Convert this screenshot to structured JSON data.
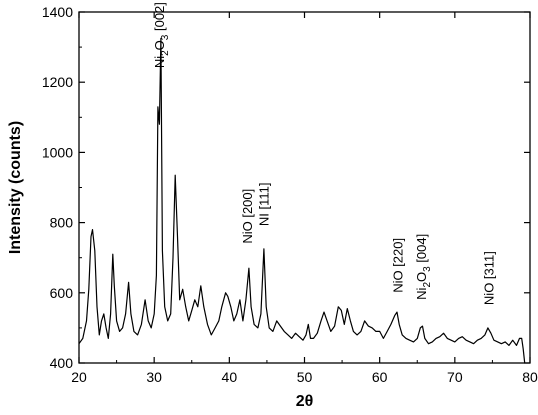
{
  "chart_data": {
    "type": "line",
    "xlabel": "2θ",
    "ylabel": "Intensity (counts)",
    "xlim": [
      20,
      80
    ],
    "ylim": [
      400,
      1400
    ],
    "x_ticks": [
      "20",
      "30",
      "40",
      "50",
      "60",
      "70",
      "80"
    ],
    "y_ticks": [
      "400",
      "600",
      "800",
      "1000",
      "1200",
      "1400"
    ],
    "grid": false,
    "legend": "none",
    "line_color": "#000000",
    "series": [
      {
        "values": [
          [
            20.0,
            455
          ],
          [
            20.5,
            470
          ],
          [
            21.0,
            520
          ],
          [
            21.3,
            610
          ],
          [
            21.6,
            760
          ],
          [
            21.8,
            780
          ],
          [
            22.1,
            720
          ],
          [
            22.4,
            560
          ],
          [
            22.7,
            480
          ],
          [
            23.0,
            520
          ],
          [
            23.3,
            540
          ],
          [
            23.6,
            500
          ],
          [
            23.9,
            470
          ],
          [
            24.2,
            540
          ],
          [
            24.5,
            710
          ],
          [
            24.7,
            620
          ],
          [
            25.0,
            520
          ],
          [
            25.4,
            490
          ],
          [
            25.8,
            500
          ],
          [
            26.2,
            540
          ],
          [
            26.6,
            630
          ],
          [
            26.9,
            540
          ],
          [
            27.3,
            490
          ],
          [
            27.8,
            480
          ],
          [
            28.3,
            510
          ],
          [
            28.8,
            580
          ],
          [
            29.2,
            520
          ],
          [
            29.6,
            500
          ],
          [
            30.0,
            540
          ],
          [
            30.3,
            650
          ],
          [
            30.5,
            1130
          ],
          [
            30.7,
            1080
          ],
          [
            30.9,
            1325
          ],
          [
            31.1,
            720
          ],
          [
            31.4,
            560
          ],
          [
            31.8,
            520
          ],
          [
            32.2,
            540
          ],
          [
            32.5,
            700
          ],
          [
            32.8,
            935
          ],
          [
            33.1,
            760
          ],
          [
            33.4,
            580
          ],
          [
            33.8,
            610
          ],
          [
            34.2,
            560
          ],
          [
            34.6,
            520
          ],
          [
            35.0,
            550
          ],
          [
            35.4,
            580
          ],
          [
            35.8,
            560
          ],
          [
            36.2,
            620
          ],
          [
            36.6,
            560
          ],
          [
            37.1,
            510
          ],
          [
            37.6,
            480
          ],
          [
            38.1,
            500
          ],
          [
            38.6,
            520
          ],
          [
            39.0,
            560
          ],
          [
            39.5,
            600
          ],
          [
            39.8,
            590
          ],
          [
            40.2,
            560
          ],
          [
            40.6,
            520
          ],
          [
            41.0,
            540
          ],
          [
            41.4,
            580
          ],
          [
            41.8,
            520
          ],
          [
            42.2,
            580
          ],
          [
            42.6,
            670
          ],
          [
            42.9,
            560
          ],
          [
            43.3,
            510
          ],
          [
            43.8,
            500
          ],
          [
            44.2,
            540
          ],
          [
            44.6,
            725
          ],
          [
            44.9,
            560
          ],
          [
            45.3,
            500
          ],
          [
            45.8,
            490
          ],
          [
            46.3,
            520
          ],
          [
            46.8,
            505
          ],
          [
            47.3,
            490
          ],
          [
            47.8,
            480
          ],
          [
            48.3,
            470
          ],
          [
            48.8,
            485
          ],
          [
            49.3,
            475
          ],
          [
            49.8,
            465
          ],
          [
            50.2,
            480
          ],
          [
            50.5,
            510
          ],
          [
            50.8,
            470
          ],
          [
            51.2,
            470
          ],
          [
            51.7,
            485
          ],
          [
            52.2,
            520
          ],
          [
            52.6,
            545
          ],
          [
            53.0,
            520
          ],
          [
            53.5,
            490
          ],
          [
            54.0,
            505
          ],
          [
            54.5,
            560
          ],
          [
            54.9,
            550
          ],
          [
            55.3,
            510
          ],
          [
            55.7,
            555
          ],
          [
            56.1,
            520
          ],
          [
            56.5,
            490
          ],
          [
            57.0,
            480
          ],
          [
            57.5,
            490
          ],
          [
            58.0,
            520
          ],
          [
            58.5,
            505
          ],
          [
            59.0,
            500
          ],
          [
            59.5,
            490
          ],
          [
            60.0,
            490
          ],
          [
            60.5,
            470
          ],
          [
            61.0,
            490
          ],
          [
            61.5,
            510
          ],
          [
            62.0,
            535
          ],
          [
            62.3,
            545
          ],
          [
            62.6,
            510
          ],
          [
            63.0,
            480
          ],
          [
            63.5,
            470
          ],
          [
            64.0,
            465
          ],
          [
            64.5,
            460
          ],
          [
            65.0,
            470
          ],
          [
            65.4,
            500
          ],
          [
            65.7,
            505
          ],
          [
            66.0,
            470
          ],
          [
            66.5,
            455
          ],
          [
            67.0,
            460
          ],
          [
            67.5,
            470
          ],
          [
            68.0,
            475
          ],
          [
            68.5,
            485
          ],
          [
            69.0,
            470
          ],
          [
            69.5,
            465
          ],
          [
            70.0,
            460
          ],
          [
            70.5,
            470
          ],
          [
            71.0,
            475
          ],
          [
            71.5,
            465
          ],
          [
            72.0,
            460
          ],
          [
            72.5,
            455
          ],
          [
            73.0,
            465
          ],
          [
            73.5,
            470
          ],
          [
            74.0,
            480
          ],
          [
            74.4,
            500
          ],
          [
            74.8,
            485
          ],
          [
            75.2,
            465
          ],
          [
            75.7,
            460
          ],
          [
            76.2,
            455
          ],
          [
            76.7,
            460
          ],
          [
            77.2,
            450
          ],
          [
            77.7,
            465
          ],
          [
            78.2,
            450
          ],
          [
            78.6,
            470
          ],
          [
            78.9,
            470
          ],
          [
            79.1,
            440
          ],
          [
            79.3,
            400
          ]
        ]
      }
    ],
    "annotations": [
      {
        "text": "Ni2O3 [002]",
        "x": 30.8,
        "y": 1240
      },
      {
        "text": "NiO [200]",
        "x": 42.5,
        "y": 740
      },
      {
        "text": "NI [111]",
        "x": 44.7,
        "y": 790
      },
      {
        "text": "NiO [220]",
        "x": 62.5,
        "y": 600
      },
      {
        "text": "Ni2O3 [004]",
        "x": 65.6,
        "y": 580
      },
      {
        "text": "NiO [311]",
        "x": 74.6,
        "y": 565
      }
    ]
  }
}
